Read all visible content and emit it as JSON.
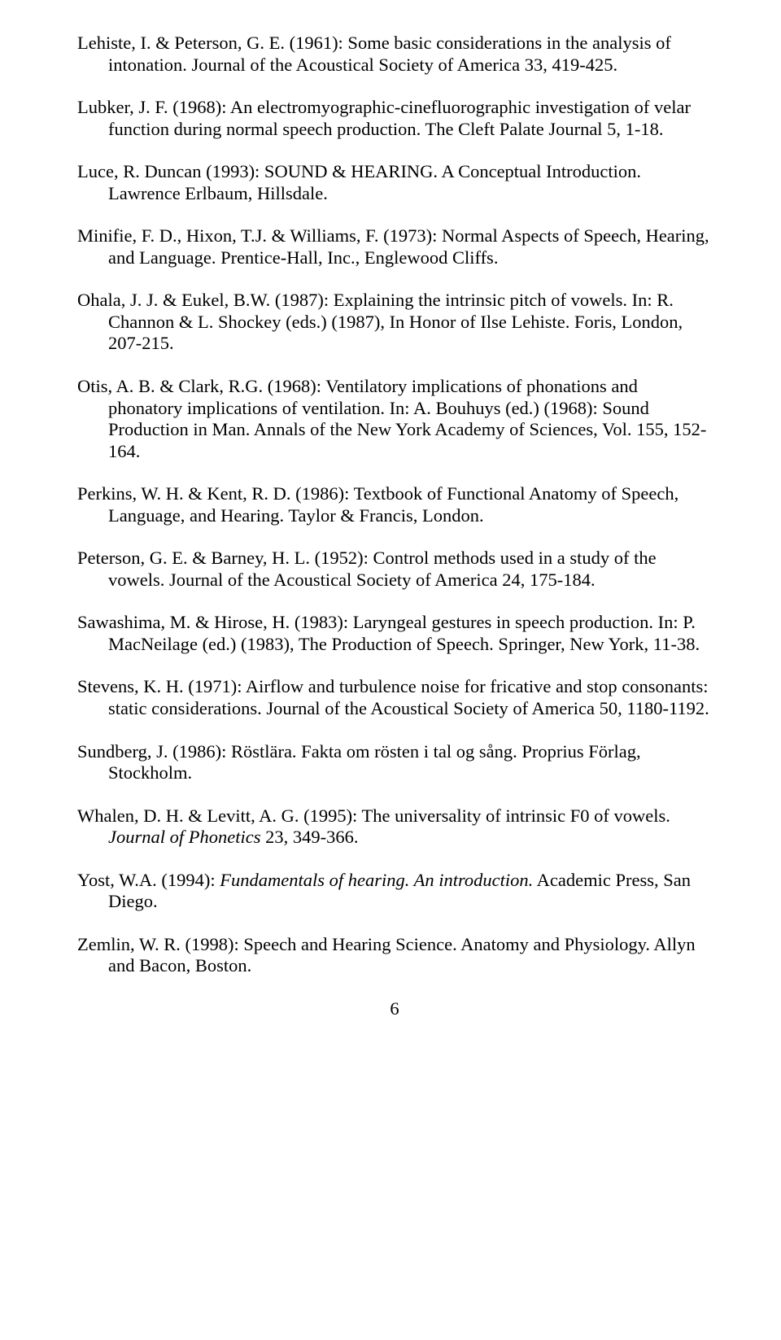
{
  "refs": [
    {
      "html": "Lehiste, I. & Peterson, G. E. (1961): Some basic considerations in the analysis of intonation. Journal of the Acoustical Society of America 33, 419-425."
    },
    {
      "html": "Lubker, J. F. (1968): An electromyographic-cinefluorographic investigation of velar function during normal speech production. The Cleft Palate Journal 5, 1-18."
    },
    {
      "html": "Luce, R. Duncan (1993): SOUND & HEARING. A Conceptual Introduction. Lawrence Erlbaum, Hillsdale."
    },
    {
      "html": "Minifie, F. D., Hixon, T.J. & Williams, F. (1973): Normal Aspects of Speech, Hearing, and Language. Prentice-Hall, Inc., Englewood Cliffs."
    },
    {
      "html": "Ohala, J. J. & Eukel, B.W. (1987): Explaining the intrinsic pitch of vowels. In: R. Channon & L. Shockey (eds.) (1987), In Honor of Ilse Lehiste. Foris, London, 207-215."
    },
    {
      "html": "Otis, A. B. & Clark, R.G. (1968): Ventilatory implications of phonations and phonatory implications of ventilation. In: A. Bouhuys (ed.) (1968): Sound Production in Man. Annals of the New York Academy of Sciences, Vol. 155, 152-164."
    },
    {
      "html": "Perkins, W. H. & Kent, R. D. (1986): Textbook of Functional Anatomy of Speech, Language, and Hearing. Taylor & Francis, London."
    },
    {
      "html": "Peterson, G. E. & Barney, H. L. (1952): Control methods used in a study of the vowels. Journal of the Acoustical Society of America 24, 175-184."
    },
    {
      "html": "Sawashima, M. & Hirose, H. (1983): Laryngeal gestures in speech production. In: P. MacNeilage (ed.) (1983), The Production of Speech. Springer, New York, 11-38."
    },
    {
      "html": "Stevens, K. H. (1971): Airflow and turbulence noise for fricative and stop consonants: static considerations. Journal of the Acoustical Society of America 50, 1180-1192."
    },
    {
      "html": "Sundberg, J. (1986): Röstlära. Fakta om rösten i tal og sång. Proprius Förlag, Stockholm."
    },
    {
      "html": "Whalen, D. H. & Levitt, A. G. (1995): The universality of intrinsic F0 of vowels. <span class=\"italic\">Journal of Phonetics</span> 23, 349-366."
    },
    {
      "html": "Yost, W.A. (1994): <span class=\"italic\">Fundamentals of hearing. An introduction.</span> Academic Press, San Diego."
    },
    {
      "html": "Zemlin, W. R. (1998): Speech and Hearing Science. Anatomy and Physiology. Allyn and Bacon, Boston."
    }
  ],
  "page_number": "6"
}
